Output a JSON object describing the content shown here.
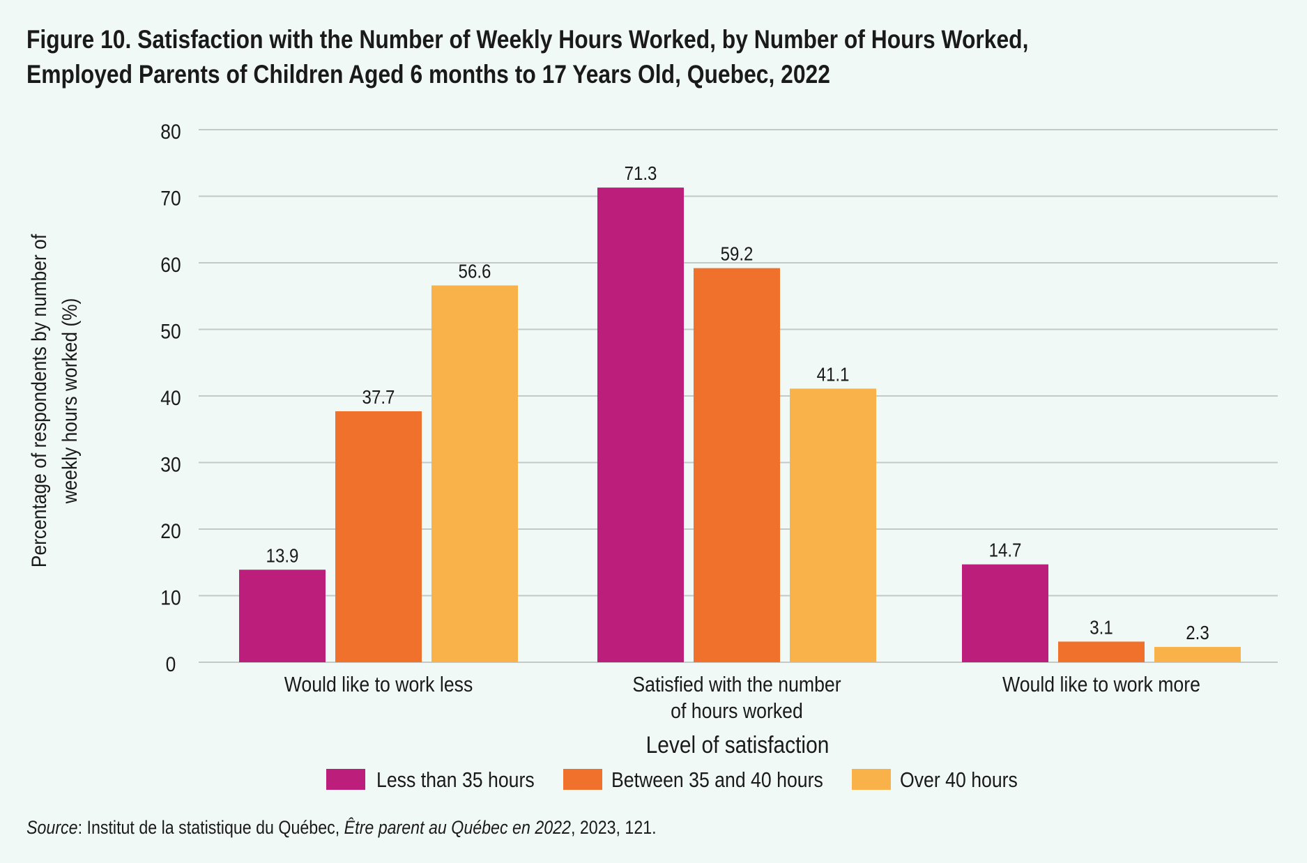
{
  "title_line1": "Figure 10. Satisfaction with the Number of Weekly Hours Worked, by Number of Hours Worked,",
  "title_line2": "Employed Parents of Children Aged 6 months to 17 Years Old, Quebec, 2022",
  "source": {
    "label": "Source",
    "text1": ": Institut de la statistique du Québec, ",
    "publication": "Être parent au Québec en 2022",
    "text2": ", 2023, 121."
  },
  "colors": {
    "background": "#f1f9f7",
    "gridline": "#c4c8c7",
    "series": [
      "#bb1f7b",
      "#f0712b",
      "#f9b14a"
    ]
  },
  "chart_data": {
    "type": "bar",
    "title": "Figure 10. Satisfaction with the Number of Weekly Hours Worked, by Number of Hours Worked, Employed Parents of Children Aged 6 months to 17 Years Old, Quebec, 2022",
    "categories": [
      [
        "Would like to work less"
      ],
      [
        "Satisfied with the number",
        "of hours worked"
      ],
      [
        "Would like to work more"
      ]
    ],
    "series": [
      {
        "name": "Less than 35 hours",
        "values": [
          13.9,
          71.3,
          14.7
        ]
      },
      {
        "name": "Between 35 and 40 hours",
        "values": [
          37.7,
          59.2,
          3.1
        ]
      },
      {
        "name": "Over 40 hours",
        "values": [
          56.6,
          41.1,
          2.3
        ]
      }
    ],
    "data_labels": [
      [
        "13.9",
        "71.3",
        "14.7"
      ],
      [
        "37.7",
        "59.2",
        "3.1"
      ],
      [
        "56.6",
        "41.1",
        "2.3"
      ]
    ],
    "xlabel": "Level of satisfaction",
    "ylabel": [
      "Percentage of respondents by number of",
      "weekly hours worked (%)"
    ],
    "ylim": [
      0,
      80
    ],
    "yticks": [
      "0",
      "10",
      "20",
      "30",
      "40",
      "50",
      "60",
      "70",
      "80"
    ],
    "grid": true,
    "legend_position": "bottom"
  }
}
